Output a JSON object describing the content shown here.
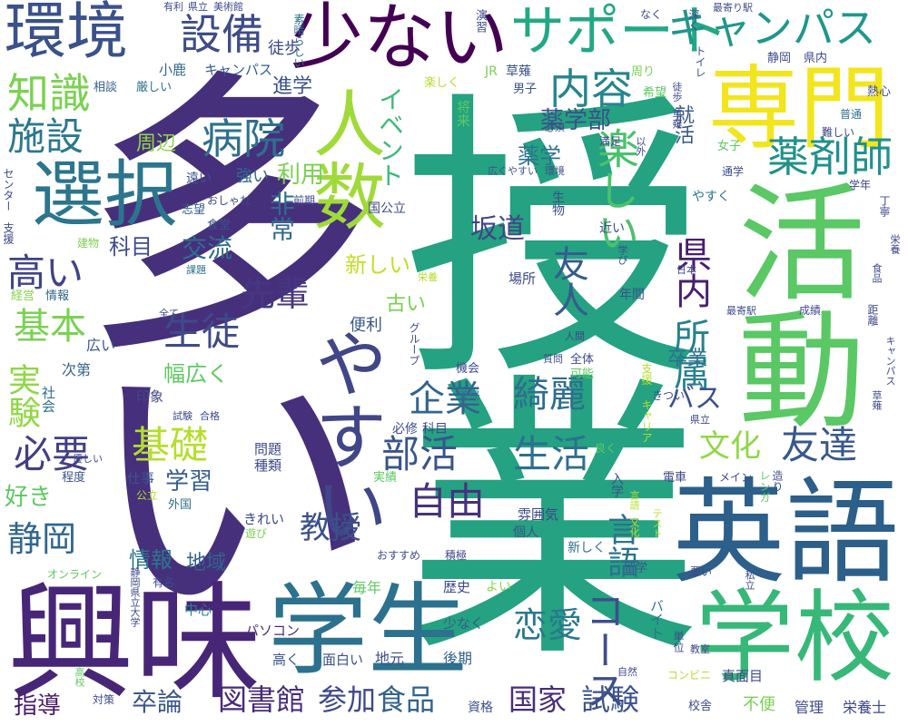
{
  "word_cloud": {
    "words": [
      {
        "text": "多い",
        "color": "#46307c"
      },
      {
        "text": "授業",
        "color": "#24a281"
      },
      {
        "text": "興味",
        "color": "#482677"
      },
      {
        "text": "活動",
        "color": "#5ac864"
      },
      {
        "text": "英語",
        "color": "#2c5f8a"
      },
      {
        "text": "学生",
        "color": "#2c718e"
      },
      {
        "text": "学校",
        "color": "#37b878"
      },
      {
        "text": "専門",
        "color": "#f2e51d"
      },
      {
        "text": "少ない",
        "color": "#440154"
      },
      {
        "text": "選択",
        "color": "#2b758e"
      },
      {
        "text": "環境",
        "color": "#3b518b"
      },
      {
        "text": "やすい",
        "color": "#404688"
      },
      {
        "text": "人数",
        "color": "#a0da39"
      },
      {
        "text": "サポート",
        "color": "#22a884"
      },
      {
        "text": "キャンパス",
        "color": "#1f978b"
      },
      {
        "text": "設備",
        "color": "#3e4c8a"
      },
      {
        "text": "知識",
        "color": "#7ad151"
      },
      {
        "text": "施設",
        "color": "#2a788e"
      },
      {
        "text": "内容",
        "color": "#25858e"
      },
      {
        "text": "病院",
        "color": "#2d708e"
      },
      {
        "text": "薬剤師",
        "color": "#21918c"
      },
      {
        "text": "楽しい",
        "color": "#4ac16d"
      },
      {
        "text": "友人",
        "color": "#365c8d"
      },
      {
        "text": "県内",
        "color": "#481f70"
      },
      {
        "text": "所属",
        "color": "#26818e"
      },
      {
        "text": "高い",
        "color": "#414487"
      },
      {
        "text": "基本",
        "color": "#7ad151"
      },
      {
        "text": "生徒",
        "color": "#3e4a89"
      },
      {
        "text": "先輩",
        "color": "#453781"
      },
      {
        "text": "実験",
        "color": "#8fd744"
      },
      {
        "text": "必要",
        "color": "#433e85"
      },
      {
        "text": "基礎",
        "color": "#b5de2b"
      },
      {
        "text": "企業",
        "color": "#32658e"
      },
      {
        "text": "綺麗",
        "color": "#2e6e8e"
      },
      {
        "text": "部活",
        "color": "#3a548c"
      },
      {
        "text": "生活",
        "color": "#2d708e"
      },
      {
        "text": "友達",
        "color": "#38588c"
      },
      {
        "text": "自由",
        "color": "#46327e"
      },
      {
        "text": "文化",
        "color": "#8fd744"
      },
      {
        "text": "静岡",
        "color": "#31668e"
      },
      {
        "text": "教授",
        "color": "#3b518b"
      },
      {
        "text": "言語",
        "color": "#2c728e"
      },
      {
        "text": "コース",
        "color": "#3d4e8a"
      },
      {
        "text": "恋愛",
        "color": "#2a788e"
      },
      {
        "text": "図書館",
        "color": "#472c7a"
      },
      {
        "text": "参加",
        "color": "#3e4989"
      },
      {
        "text": "食品",
        "color": "#33638d"
      },
      {
        "text": "国家",
        "color": "#472d7b"
      },
      {
        "text": "試験",
        "color": "#3b528b"
      },
      {
        "text": "卒論",
        "color": "#39568c"
      },
      {
        "text": "指導",
        "color": "#481769"
      },
      {
        "text": "好き",
        "color": "#5ec962"
      },
      {
        "text": "学習",
        "color": "#365d8d"
      },
      {
        "text": "情報",
        "color": "#2a768e"
      },
      {
        "text": "地域",
        "color": "#33638d"
      },
      {
        "text": "薬学部",
        "color": "#3b518b"
      },
      {
        "text": "薬学",
        "color": "#2d718e"
      },
      {
        "text": "イベント",
        "color": "#3aba76"
      },
      {
        "text": "非常",
        "color": "#2f6c8e"
      },
      {
        "text": "利用",
        "color": "#7ad151"
      },
      {
        "text": "科目",
        "color": "#3e4c8a"
      },
      {
        "text": "交流",
        "color": "#2e6e8e"
      },
      {
        "text": "坂道",
        "color": "#414487"
      },
      {
        "text": "新しい",
        "color": "#c0df25"
      },
      {
        "text": "周辺",
        "color": "#8fd744"
      },
      {
        "text": "進学",
        "color": "#3a548c"
      },
      {
        "text": "幅広く",
        "color": "#5ec962"
      },
      {
        "text": "古い",
        "color": "#7ad151"
      },
      {
        "text": "便利",
        "color": "#38598c"
      },
      {
        "text": "バス",
        "color": "#3b518b"
      },
      {
        "text": "卒業",
        "color": "#2c728e"
      },
      {
        "text": "就活",
        "color": "#38588c"
      },
      {
        "text": "徒歩",
        "color": "#3e4989"
      },
      {
        "text": "小鹿",
        "color": "#31688e"
      },
      {
        "text": "キャンパス",
        "color": "#365d8d"
      },
      {
        "text": "相談",
        "color": "#34618d"
      },
      {
        "text": "厳しい",
        "color": "#2e6f8e"
      },
      {
        "text": "強い",
        "color": "#2f6b8e"
      },
      {
        "text": "遠い",
        "color": "#3b528b"
      },
      {
        "text": "志望",
        "color": "#34618d"
      },
      {
        "text": "食堂",
        "color": "#3b518b"
      },
      {
        "text": "経営",
        "color": "#86d549"
      },
      {
        "text": "情報",
        "color": "#31688e"
      },
      {
        "text": "広い",
        "color": "#38588c"
      },
      {
        "text": "次第",
        "color": "#33638d"
      },
      {
        "text": "社会",
        "color": "#2c728e"
      },
      {
        "text": "印象",
        "color": "#3f4788"
      },
      {
        "text": "問題",
        "color": "#3e4c8a"
      },
      {
        "text": "種類",
        "color": "#3e4989"
      },
      {
        "text": "仕事",
        "color": "#3a548c"
      },
      {
        "text": "程度",
        "color": "#3a548c"
      },
      {
        "text": "外国",
        "color": "#2e6f8e"
      },
      {
        "text": "公立",
        "color": "#b5de2b"
      },
      {
        "text": "中心",
        "color": "#26818e"
      },
      {
        "text": "きれい",
        "color": "#3e4989"
      },
      {
        "text": "遊び",
        "color": "#7ad151"
      },
      {
        "text": "有名",
        "color": "#3e4c8a"
      },
      {
        "text": "オンライン",
        "color": "#5ec962"
      },
      {
        "text": "静岡県立大学",
        "color": "#3e4989"
      },
      {
        "text": "パソコン",
        "color": "#472d7b"
      },
      {
        "text": "高く",
        "color": "#3a548c"
      },
      {
        "text": "面白い",
        "color": "#3b518b"
      },
      {
        "text": "地元",
        "color": "#3e4a89"
      },
      {
        "text": "後期",
        "color": "#33638d"
      },
      {
        "text": "資格",
        "color": "#3b518b"
      },
      {
        "text": "少なく",
        "color": "#365c8d"
      },
      {
        "text": "歴史",
        "color": "#3e4989"
      },
      {
        "text": "よい",
        "color": "#86d549"
      },
      {
        "text": "留学",
        "color": "#3a548c"
      },
      {
        "text": "バイト",
        "color": "#2c728e"
      },
      {
        "text": "新しく",
        "color": "#2e6f8e"
      },
      {
        "text": "個人",
        "color": "#3a548c"
      },
      {
        "text": "雰囲気",
        "color": "#3f4788"
      },
      {
        "text": "おすすめ",
        "color": "#3e4c8a"
      },
      {
        "text": "積極",
        "color": "#3f4788"
      },
      {
        "text": "実績",
        "color": "#5ec962"
      },
      {
        "text": "必修",
        "color": "#3e4c8a"
      },
      {
        "text": "科目",
        "color": "#3e4a89"
      },
      {
        "text": "薬局",
        "color": "#2e6f8e"
      },
      {
        "text": "入学",
        "color": "#3b518b"
      },
      {
        "text": "良く",
        "color": "#5ec962"
      },
      {
        "text": "きつい",
        "color": "#3e4989"
      },
      {
        "text": "電車",
        "color": "#3e4989"
      },
      {
        "text": "メイン",
        "color": "#3e4c8a"
      },
      {
        "text": "キャリア",
        "color": "#b5de2b"
      },
      {
        "text": "支援",
        "color": "#b5de2b"
      },
      {
        "text": "年間",
        "color": "#3b518b"
      },
      {
        "text": "場所",
        "color": "#3e4a89"
      },
      {
        "text": "近い",
        "color": "#3e4c8a"
      },
      {
        "text": "生物",
        "color": "#3e4989"
      },
      {
        "text": "国公立",
        "color": "#3e4c8a"
      },
      {
        "text": "学年",
        "color": "#3f4788"
      },
      {
        "text": "丁寧",
        "color": "#3e4c8a"
      },
      {
        "text": "通学",
        "color": "#3e4c8a"
      },
      {
        "text": "女子",
        "color": "#5ec962"
      },
      {
        "text": "男子",
        "color": "#3a548c"
      },
      {
        "text": "やすく",
        "color": "#2c728e"
      },
      {
        "text": "満足",
        "color": "#3f4788"
      },
      {
        "text": "以外",
        "color": "#3e4989"
      },
      {
        "text": "必須",
        "color": "#3e4989"
      },
      {
        "text": "広くやすい",
        "color": "#3b528b"
      },
      {
        "text": "環境",
        "color": "#3e4c8a"
      },
      {
        "text": "楽しく",
        "color": "#b5de2b"
      },
      {
        "text": "将来",
        "color": "#5ec962"
      },
      {
        "text": "JR",
        "color": "#7ad151"
      },
      {
        "text": "草薙",
        "color": "#3a548c"
      },
      {
        "text": "演習",
        "color": "#3e4c8a"
      },
      {
        "text": "周り",
        "color": "#7ad151"
      },
      {
        "text": "なく",
        "color": "#3e4989"
      },
      {
        "text": "深く",
        "color": "#3e4c8a"
      },
      {
        "text": "最寄り駅",
        "color": "#3e4c8a"
      },
      {
        "text": "トイレ",
        "color": "#3a548c"
      },
      {
        "text": "静岡",
        "color": "#3e4c8a"
      },
      {
        "text": "県内",
        "color": "#3e4989"
      },
      {
        "text": "熱心",
        "color": "#3e4a89"
      },
      {
        "text": "普通",
        "color": "#2c728e"
      },
      {
        "text": "難しい",
        "color": "#3e4989"
      },
      {
        "text": "草薙",
        "color": "#3e4c8a"
      },
      {
        "text": "徒歩",
        "color": "#3e4c8a"
      },
      {
        "text": "希望",
        "color": "#5ec962"
      },
      {
        "text": "有利",
        "color": "#3e4a89"
      },
      {
        "text": "県立",
        "color": "#3e4a89"
      },
      {
        "text": "美術館",
        "color": "#3e4c8a"
      },
      {
        "text": "素晴らしい",
        "color": "#2c728e"
      },
      {
        "text": "センター",
        "color": "#3e4989"
      },
      {
        "text": "支援",
        "color": "#3e4989"
      },
      {
        "text": "前期",
        "color": "#3e4c8a"
      },
      {
        "text": "おしゃれ",
        "color": "#3e4989"
      },
      {
        "text": "建物",
        "color": "#7ad151"
      },
      {
        "text": "課題",
        "color": "#2c728e"
      },
      {
        "text": "栄養",
        "color": "#b5de2b"
      },
      {
        "text": "全て",
        "color": "#3e4c8a"
      },
      {
        "text": "試験",
        "color": "#3e4989"
      },
      {
        "text": "合格",
        "color": "#3e4a89"
      },
      {
        "text": "優しい",
        "color": "#3e4c8a"
      },
      {
        "text": "グループ",
        "color": "#3e4c8a"
      },
      {
        "text": "機会",
        "color": "#3e4989"
      },
      {
        "text": "全体",
        "color": "#3e4a89"
      },
      {
        "text": "可能",
        "color": "#5ec962"
      },
      {
        "text": "人間",
        "color": "#3e4989"
      },
      {
        "text": "質問",
        "color": "#3e4c8a"
      },
      {
        "text": "学び",
        "color": "#3e4c8a"
      },
      {
        "text": "日本",
        "color": "#3e4989"
      },
      {
        "text": "最寄駅",
        "color": "#3e4c8a"
      },
      {
        "text": "成績",
        "color": "#3e4c8a"
      },
      {
        "text": "距離",
        "color": "#3e4a89"
      },
      {
        "text": "キャンパス",
        "color": "#3e4c8a"
      },
      {
        "text": "食品",
        "color": "#3e4c8a"
      },
      {
        "text": "栄養",
        "color": "#3e4989"
      },
      {
        "text": "草薙",
        "color": "#3e4c8a"
      },
      {
        "text": "県立",
        "color": "#3e4989"
      },
      {
        "text": "造り",
        "color": "#3e4a89"
      },
      {
        "text": "レンガ",
        "color": "#5ec962"
      },
      {
        "text": "私立",
        "color": "#3e4c8a"
      },
      {
        "text": "テスト",
        "color": "#b5de2b"
      },
      {
        "text": "言語",
        "color": "#b5de2b"
      },
      {
        "text": "文化",
        "color": "#b5de2b"
      },
      {
        "text": "悪い",
        "color": "#3e4989"
      },
      {
        "text": "単位",
        "color": "#3e4c8a"
      },
      {
        "text": "教室",
        "color": "#3e4989"
      },
      {
        "text": "自然",
        "color": "#3e4989"
      },
      {
        "text": "コンビニ",
        "color": "#b5de2b"
      },
      {
        "text": "真面目",
        "color": "#3e4989"
      },
      {
        "text": "不便",
        "color": "#7ad151"
      },
      {
        "text": "管理",
        "color": "#3e4a89"
      },
      {
        "text": "栄養士",
        "color": "#3e4989"
      },
      {
        "text": "校舎",
        "color": "#3e4989"
      },
      {
        "text": "対策",
        "color": "#3e4a89"
      },
      {
        "text": "高校",
        "color": "#5ec962"
      },
      {
        "text": "毎年",
        "color": "#5ec962"
      }
    ]
  }
}
